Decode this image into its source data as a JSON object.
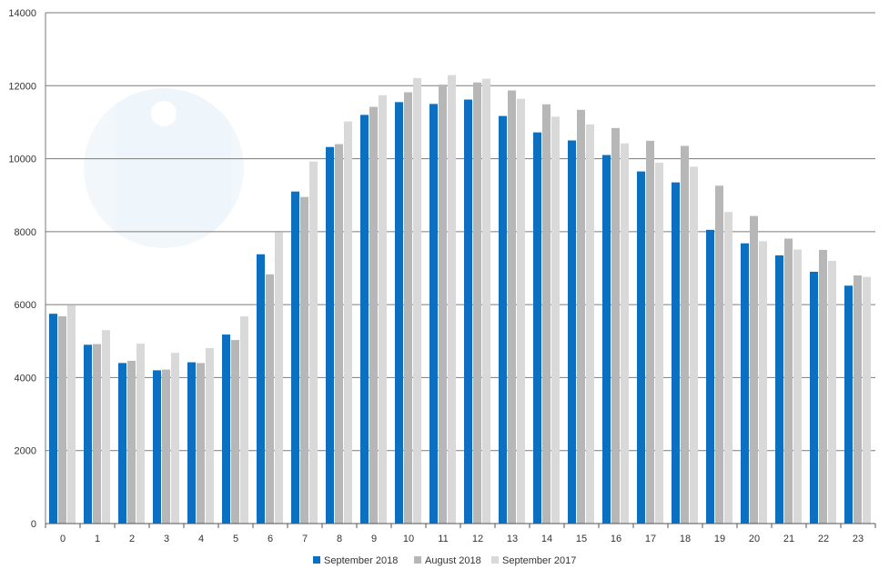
{
  "chart_data": {
    "type": "bar",
    "categories": [
      "0",
      "1",
      "2",
      "3",
      "4",
      "5",
      "6",
      "7",
      "8",
      "9",
      "10",
      "11",
      "12",
      "13",
      "14",
      "15",
      "16",
      "17",
      "18",
      "19",
      "20",
      "21",
      "22",
      "23"
    ],
    "series": [
      {
        "name": "September 2018",
        "color": "#0d6fc0",
        "values": [
          5750,
          4900,
          4400,
          4200,
          4420,
          5180,
          7380,
          9100,
          10320,
          11200,
          11550,
          11500,
          11620,
          11170,
          10720,
          10500,
          10100,
          9650,
          9350,
          8050,
          7680,
          7350,
          6900,
          6520
        ]
      },
      {
        "name": "August 2018",
        "color": "#b7b7b7",
        "values": [
          5680,
          4920,
          4460,
          4220,
          4400,
          5030,
          6830,
          8950,
          10400,
          11420,
          11820,
          12030,
          12090,
          11870,
          11490,
          11340,
          10840,
          10490,
          10350,
          9260,
          8430,
          7810,
          7500,
          6800
        ]
      },
      {
        "name": "September 2017",
        "color": "#d9d9d9",
        "values": [
          5980,
          5300,
          4930,
          4680,
          4810,
          5680,
          7980,
          9920,
          11020,
          11740,
          12210,
          12290,
          12190,
          11640,
          11150,
          10940,
          10420,
          9890,
          9780,
          8540,
          7740,
          7510,
          7200,
          6760
        ]
      }
    ],
    "title": "",
    "xlabel": "",
    "ylabel": "",
    "ylim": [
      0,
      14000
    ],
    "yticks": [
      "0",
      "2000",
      "4000",
      "6000",
      "8000",
      "10000",
      "12000",
      "14000"
    ],
    "grid": true,
    "legend_position": "bottom"
  }
}
